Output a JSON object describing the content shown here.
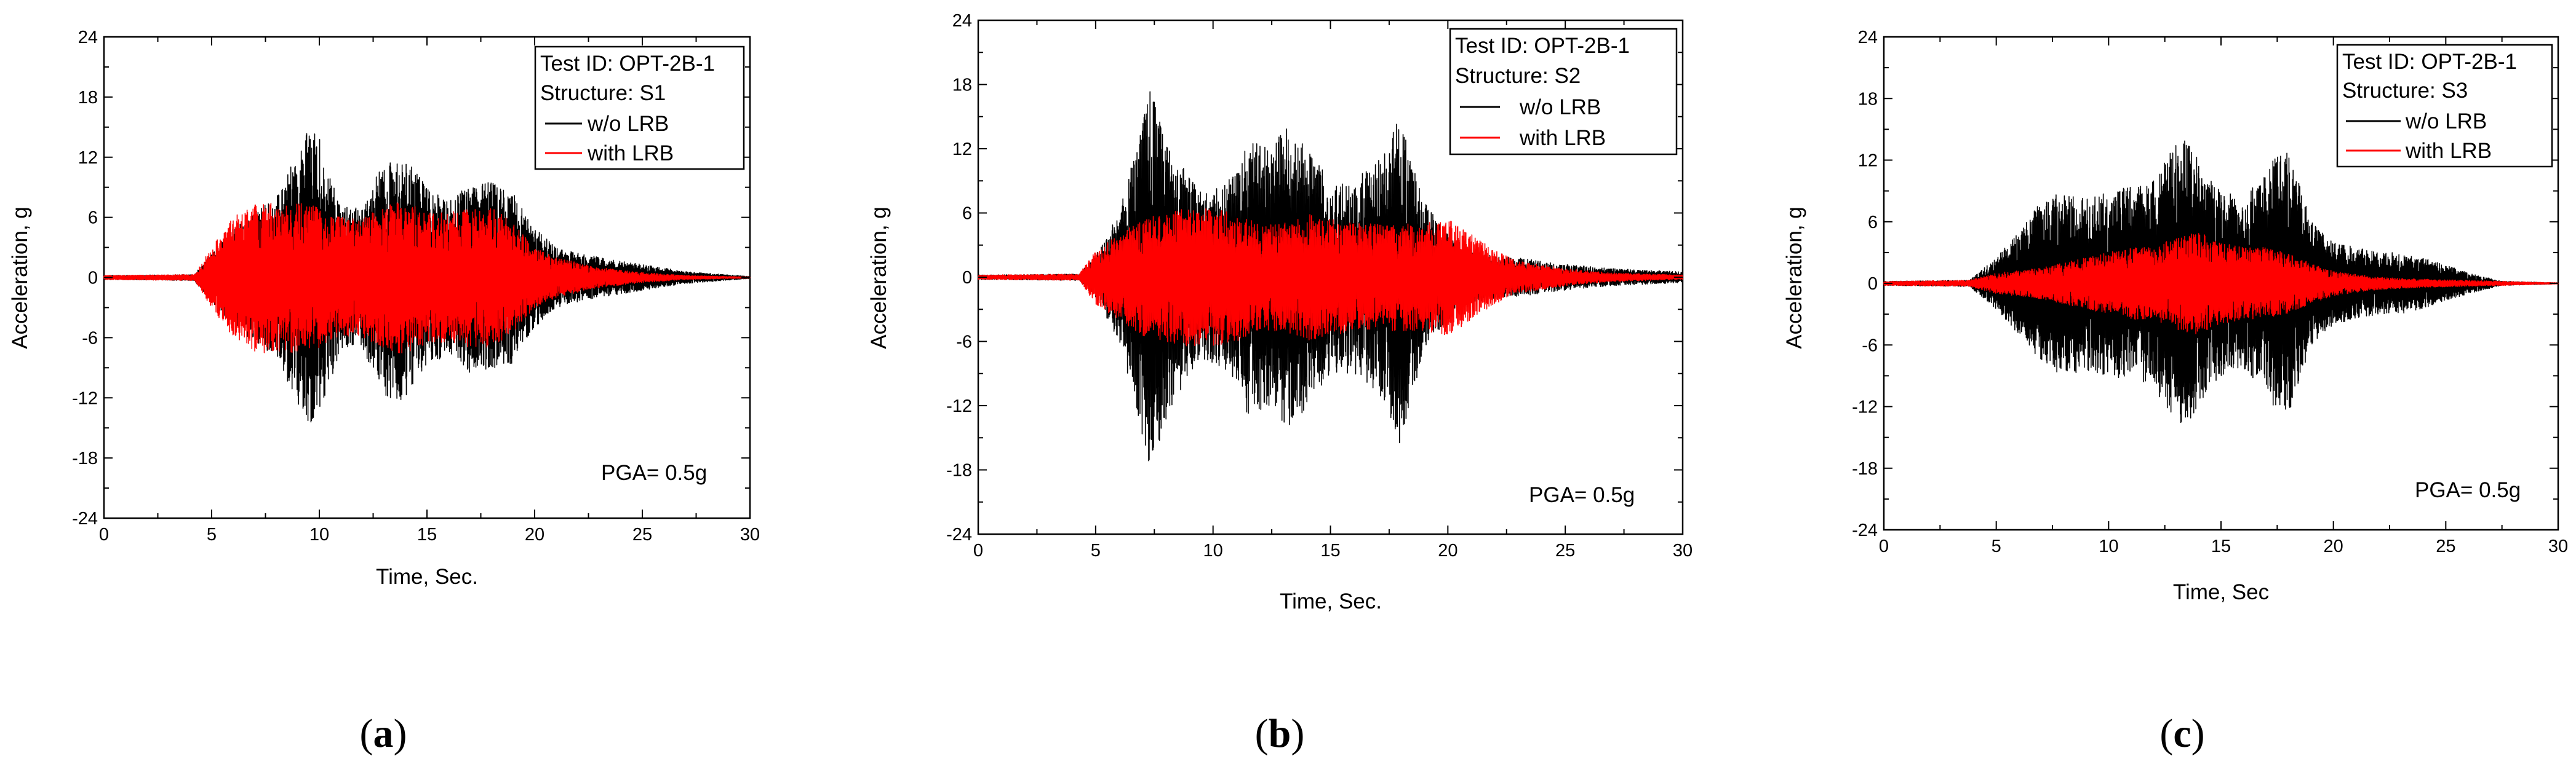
{
  "chart_data": [
    {
      "type": "line",
      "panel": "a",
      "panel_label": "a",
      "legend_title": "Test ID: OPT-2B-1",
      "structure_label": "Structure: S1",
      "annotation": "PGA= 0.5g",
      "xlabel": "Time, Sec.",
      "ylabel": "Acceleration, g",
      "xlim": [
        0,
        30
      ],
      "ylim": [
        -24,
        24
      ],
      "xticks": [
        0,
        5,
        10,
        15,
        20,
        25,
        30
      ],
      "yticks": [
        -24,
        -18,
        -12,
        -6,
        0,
        6,
        12,
        18,
        24
      ],
      "xtick_labels": [
        "0",
        "5",
        "10",
        "15",
        "20",
        "25",
        "30"
      ],
      "ytick_labels": [
        "-24",
        "-18",
        "-12",
        "-6",
        "0",
        "6",
        "12",
        "18",
        "24"
      ],
      "series": [
        {
          "name": "w/o LRB",
          "color": "#000000",
          "envelope": {
            "t": [
              0,
              4.2,
              5,
              6,
              7,
              8,
              9,
              9.5,
              10,
              11,
              12,
              13,
              13.5,
              14,
              15,
              16,
              17,
              18,
              19,
              20,
              21,
              22,
              23,
              25,
              27,
              30
            ],
            "amp": [
              0.2,
              0.3,
              2.5,
              5,
              6.5,
              8,
              12.5,
              15,
              14,
              7,
              7,
              12,
              12.5,
              12,
              9,
              7.5,
              9.5,
              9.5,
              8.5,
              5,
              3,
              2.5,
              2,
              1.3,
              0.6,
              0.1
            ]
          }
        },
        {
          "name": "with LRB",
          "color": "#ff0000",
          "envelope": {
            "t": [
              0,
              4.2,
              5,
              6,
              7,
              8,
              9,
              10,
              11,
              12,
              13,
              14,
              15,
              16,
              17,
              18,
              19,
              20,
              21,
              22,
              23,
              25,
              27,
              30
            ],
            "amp": [
              0.2,
              0.3,
              3,
              6,
              7.5,
              7.5,
              7.5,
              7,
              6,
              6,
              7,
              8,
              6.5,
              6.5,
              7,
              7,
              5.5,
              3,
              2,
              1.5,
              1,
              0.5,
              0.2,
              0.05
            ]
          }
        }
      ]
    },
    {
      "type": "line",
      "panel": "b",
      "panel_label": "b",
      "legend_title": "Test ID: OPT-2B-1",
      "structure_label": "Structure: S2",
      "annotation": "PGA= 0.5g",
      "xlabel": "Time, Sec.",
      "ylabel": "Acceleration, g",
      "xlim": [
        0,
        30
      ],
      "ylim": [
        -24,
        24
      ],
      "xticks": [
        0,
        5,
        10,
        15,
        20,
        25,
        30
      ],
      "yticks": [
        -24,
        -18,
        -12,
        -6,
        0,
        6,
        12,
        18,
        24
      ],
      "xtick_labels": [
        "0",
        "5",
        "10",
        "15",
        "20",
        "25",
        "30"
      ],
      "ytick_labels": [
        "-24",
        "-18",
        "-12",
        "-6",
        "0",
        "6",
        "12",
        "18",
        "24"
      ],
      "series": [
        {
          "name": "w/o LRB",
          "color": "#000000",
          "envelope": {
            "t": [
              0,
              4.3,
              5,
              6,
              6.8,
              7.3,
              7.8,
              8.5,
              9.5,
              10,
              11,
              11.5,
              12.5,
              13.2,
              14,
              15,
              16,
              17,
              17.5,
              18,
              18.5,
              19,
              20,
              21,
              22,
              23,
              25,
              27,
              30
            ],
            "amp": [
              0.2,
              0.3,
              2,
              6,
              13,
              18,
              15,
              11,
              8,
              8,
              10,
              13,
              12,
              15,
              12,
              9,
              9,
              11,
              13,
              16,
              11,
              7,
              4,
              2.5,
              2,
              1.8,
              1.2,
              0.8,
              0.5
            ]
          }
        },
        {
          "name": "with LRB",
          "color": "#ff0000",
          "envelope": {
            "t": [
              0,
              4.3,
              5,
              6,
              7,
              8,
              9,
              10,
              11,
              12,
              13,
              14,
              15,
              16,
              17,
              18,
              19,
              20,
              21,
              22,
              23,
              25,
              27,
              30
            ],
            "amp": [
              0.2,
              0.3,
              2.5,
              4,
              5.5,
              6,
              6.5,
              6.5,
              6,
              5,
              5,
              6,
              5.5,
              5,
              5,
              5,
              5,
              5.5,
              4,
              2.5,
              1.5,
              0.8,
              0.4,
              0.2
            ]
          }
        }
      ]
    },
    {
      "type": "line",
      "panel": "c",
      "panel_label": "c",
      "legend_title": "Test ID: OPT-2B-1",
      "structure_label": "Structure: S3",
      "annotation": "PGA= 0.5g",
      "xlabel": "Time, Sec",
      "ylabel": "Acceleration, g",
      "xlim": [
        0,
        30
      ],
      "ylim": [
        -24,
        24
      ],
      "xticks": [
        0,
        5,
        10,
        15,
        20,
        25,
        30
      ],
      "yticks": [
        -24,
        -18,
        -12,
        -6,
        0,
        6,
        12,
        18,
        24
      ],
      "xtick_labels": [
        "0",
        "5",
        "10",
        "15",
        "20",
        "25",
        "30"
      ],
      "ytick_labels": [
        "-24",
        "-18",
        "-12",
        "-6",
        "0",
        "6",
        "12",
        "18",
        "24"
      ],
      "series": [
        {
          "name": "w/o LRB",
          "color": "#000000",
          "envelope": {
            "t": [
              0,
              3.8,
              5,
              6,
              7,
              8,
              9,
              10,
              11,
              12,
              12.5,
              13,
              13.5,
              14,
              15,
              16,
              17,
              17.5,
              18,
              19,
              20,
              21,
              22,
              23,
              24,
              25,
              26,
              27.5,
              30
            ],
            "amp": [
              0.2,
              0.3,
              2.5,
              5,
              8,
              9,
              8.5,
              9,
              9.5,
              10,
              12,
              13.5,
              14,
              12,
              9,
              8.5,
              10.5,
              13,
              13,
              6,
              4,
              3.5,
              3,
              3,
              2.5,
              1.8,
              1,
              0.2,
              0.05
            ]
          }
        },
        {
          "name": "with LRB",
          "color": "#ff0000",
          "envelope": {
            "t": [
              0,
              3.8,
              5,
              7,
              9,
              10,
              11,
              12,
              13,
              14,
              15,
              16,
              17,
              18,
              19,
              20,
              22,
              24,
              26,
              27.5,
              30
            ],
            "amp": [
              0.2,
              0.3,
              1,
              1.5,
              2.5,
              3,
              3.5,
              3.5,
              4.5,
              5,
              4,
              3.5,
              3.5,
              3,
              2,
              1.2,
              0.6,
              0.4,
              0.3,
              0.2,
              0.05
            ]
          }
        }
      ]
    }
  ]
}
